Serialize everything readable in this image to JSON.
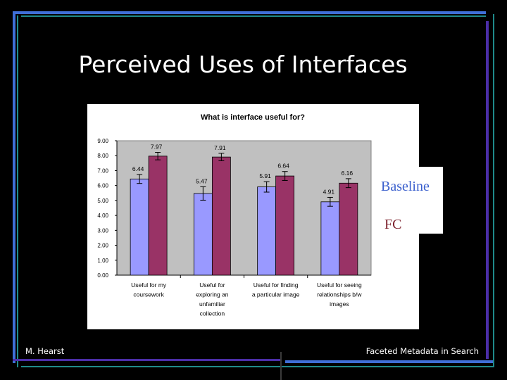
{
  "slide": {
    "title": "Perceived Uses of Interfaces",
    "footer_left": "M. Hearst",
    "footer_right": "Faceted Metadata in Search"
  },
  "legend": {
    "items": [
      {
        "label": "Baseline",
        "color": "#3a5fcd"
      },
      {
        "label": "FC",
        "color": "#7b1f2a"
      }
    ]
  },
  "colors": {
    "series_baseline": "#9999ff",
    "series_fc": "#993366",
    "plot_bg": "#c0c0c0",
    "accent_blue": "#3f6fd8",
    "accent_teal": "#1f8a8a",
    "accent_purple": "#4b2ea8"
  },
  "chart_data": {
    "type": "bar",
    "title": "What is interface useful for?",
    "categories": [
      [
        "Useful for my",
        "coursework"
      ],
      [
        "Useful for",
        "exploring an",
        "unfamiliar",
        "collection"
      ],
      [
        "Useful for finding",
        "a particular image"
      ],
      [
        "Useful for seeing",
        "relationships b/w",
        "images"
      ]
    ],
    "series": [
      {
        "values": [
          6.44,
          5.47,
          5.91,
          4.91
        ],
        "errors": [
          0.3,
          0.45,
          0.35,
          0.3
        ],
        "labels": [
          "6.44",
          "5.47",
          "5.91",
          "4.91"
        ]
      },
      {
        "values": [
          7.97,
          7.91,
          6.64,
          6.16
        ],
        "errors": [
          0.25,
          0.25,
          0.3,
          0.3
        ],
        "labels": [
          "7.97",
          "7.91",
          "6.64",
          "6.16"
        ]
      }
    ],
    "ylim": [
      0,
      9
    ],
    "yticks": [
      "0.00",
      "1.00",
      "2.00",
      "3.00",
      "4.00",
      "5.00",
      "6.00",
      "7.00",
      "8.00",
      "9.00"
    ],
    "grid": false,
    "legend": "right"
  }
}
